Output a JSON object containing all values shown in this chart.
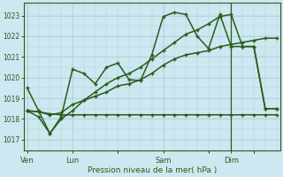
{
  "title": "",
  "xlabel": "Pression niveau de la mer( hPa )",
  "bg_color": "#cce8f0",
  "grid_color": "#b0ccd4",
  "line_color": "#2d5a1b",
  "ylim": [
    1016.5,
    1023.6
  ],
  "yticks": [
    1017,
    1018,
    1019,
    1020,
    1021,
    1022,
    1023
  ],
  "xtick_labels": [
    "Ven",
    "Lun",
    "Sam",
    "Dim"
  ],
  "xtick_positions": [
    0,
    4,
    12,
    18
  ],
  "total_points": 23,
  "series_zigzag": [
    1019.5,
    1018.4,
    1017.3,
    1018.1,
    1020.4,
    1020.2,
    1019.7,
    1020.5,
    1020.7,
    1019.9,
    1019.85,
    1021.1,
    1022.95,
    1023.15,
    1023.05,
    1022.0,
    1021.4,
    1023.05,
    1021.5,
    1021.5,
    1021.5,
    1018.5,
    1018.5
  ],
  "series_flat": [
    1018.4,
    1018.35,
    1018.25,
    1018.2,
    1018.2,
    1018.2,
    1018.2,
    1018.2,
    1018.2,
    1018.2,
    1018.2,
    1018.2,
    1018.2,
    1018.2,
    1018.2,
    1018.2,
    1018.2,
    1018.2,
    1018.2,
    1018.2,
    1018.2,
    1018.2,
    1018.2
  ],
  "series_linear1": [
    1018.4,
    1018.35,
    1018.2,
    1018.3,
    1018.7,
    1018.9,
    1019.1,
    1019.3,
    1019.6,
    1019.7,
    1019.9,
    1020.2,
    1020.6,
    1020.9,
    1021.1,
    1021.2,
    1021.3,
    1021.5,
    1021.6,
    1021.7,
    1021.8,
    1021.9,
    1021.9
  ],
  "series_linear2": [
    1018.4,
    1018.1,
    1017.3,
    1018.0,
    1018.4,
    1018.9,
    1019.3,
    1019.7,
    1020.0,
    1020.2,
    1020.5,
    1020.9,
    1021.3,
    1021.7,
    1022.1,
    1022.3,
    1022.6,
    1022.95,
    1023.05,
    1021.5,
    1021.5,
    1018.5,
    1018.5
  ],
  "dim_line_x": 18
}
